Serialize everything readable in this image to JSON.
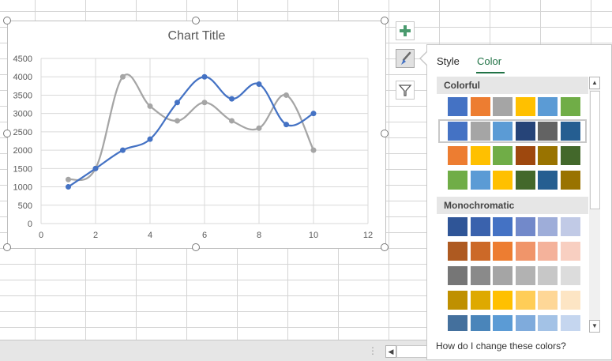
{
  "chart": {
    "title": "Chart Title",
    "colors": {
      "series1": "#4472c4",
      "series2": "#a5a5a5",
      "gridline": "#d9d9d9",
      "axis_text": "#595959"
    }
  },
  "chart_data": {
    "type": "scatter",
    "title": "Chart Title",
    "xlabel": "",
    "ylabel": "",
    "xlim": [
      0,
      12
    ],
    "ylim": [
      0,
      4500
    ],
    "xticks": [
      0,
      2,
      4,
      6,
      8,
      10,
      12
    ],
    "yticks": [
      0,
      500,
      1000,
      1500,
      2000,
      2500,
      3000,
      3500,
      4000,
      4500
    ],
    "smooth_lines": true,
    "grid": true,
    "series": [
      {
        "color": "#4472c4",
        "x": [
          1,
          2,
          3,
          4,
          5,
          6,
          7,
          8,
          9,
          10
        ],
        "y": [
          1000,
          1500,
          2000,
          2300,
          3300,
          4000,
          3400,
          3800,
          2700,
          3000
        ]
      },
      {
        "color": "#a5a5a5",
        "x": [
          1,
          2,
          3,
          4,
          5,
          6,
          7,
          8,
          9,
          10
        ],
        "y": [
          1200,
          1500,
          4000,
          3200,
          2800,
          3300,
          2800,
          2600,
          3500,
          2000
        ]
      }
    ]
  },
  "side_buttons": [
    {
      "name": "chart-elements-button",
      "icon": "plus-icon"
    },
    {
      "name": "chart-styles-button",
      "icon": "paintbrush-icon"
    },
    {
      "name": "chart-filters-button",
      "icon": "filter-icon"
    }
  ],
  "panel": {
    "tabs": [
      {
        "label": "Style",
        "active": false
      },
      {
        "label": "Color",
        "active": true
      }
    ],
    "sections": [
      {
        "title": "Colorful",
        "rows": [
          [
            "#4472c4",
            "#ed7d31",
            "#a5a5a5",
            "#ffc000",
            "#5b9bd5",
            "#70ad47"
          ],
          [
            "#4472c4",
            "#a5a5a5",
            "#5b9bd5",
            "#264478",
            "#636363",
            "#255e91"
          ],
          [
            "#ed7d31",
            "#ffc000",
            "#70ad47",
            "#9e480e",
            "#997300",
            "#43682b"
          ],
          [
            "#70ad47",
            "#5b9bd5",
            "#ffc000",
            "#43682b",
            "#255e91",
            "#997300"
          ]
        ],
        "selected_row": 1
      },
      {
        "title": "Monochromatic",
        "rows": [
          [
            "#2f5597",
            "#3a62ad",
            "#4472c4",
            "#7289ca",
            "#9eadd9",
            "#c1cae6"
          ],
          [
            "#ae5a21",
            "#cc6928",
            "#ed7d31",
            "#f0956a",
            "#f4b29b",
            "#f8cfc1"
          ],
          [
            "#767676",
            "#8a8a8a",
            "#a5a5a5",
            "#b2b2b2",
            "#c7c7c7",
            "#dcdcdc"
          ],
          [
            "#bf9000",
            "#dea900",
            "#ffc000",
            "#ffcd57",
            "#fed797",
            "#fde5c4"
          ],
          [
            "#44709d",
            "#4a85ba",
            "#5b9bd5",
            "#7fabdc",
            "#a3c2e6",
            "#c5d6ef"
          ]
        ]
      }
    ],
    "help_text": "How do I change these colors?"
  }
}
